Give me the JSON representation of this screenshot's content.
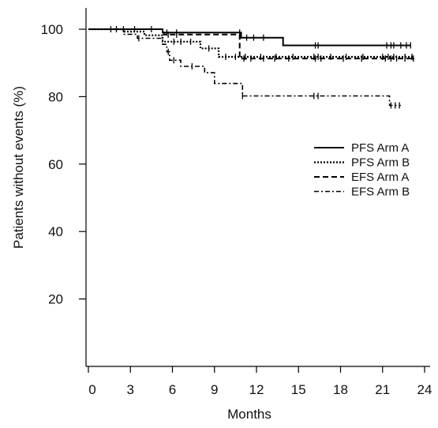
{
  "chart_data": {
    "type": "line",
    "title": "",
    "xlabel": "Months",
    "ylabel": "Patients without events (%)",
    "xlim": [
      0,
      24.5
    ],
    "ylim": [
      0,
      105
    ],
    "x_ticks": [
      0,
      3,
      6,
      9,
      12,
      15,
      18,
      21,
      24
    ],
    "x_tick_labels": [
      "0",
      "3",
      "6",
      "9",
      "12",
      "15",
      "18",
      "21",
      "24"
    ],
    "y_ticks": [
      20,
      40,
      60,
      80,
      100
    ],
    "y_tick_labels": [
      "20",
      "40",
      "60",
      "80",
      "100"
    ],
    "grid": false,
    "legend_position": "right",
    "series": [
      {
        "name": "PFS Arm A",
        "dash": "solid",
        "points": [
          [
            0,
            100
          ],
          [
            5.3,
            100
          ],
          [
            5.3,
            99
          ],
          [
            10.9,
            99
          ],
          [
            10.9,
            97.5
          ],
          [
            13.9,
            97.5
          ],
          [
            13.9,
            95.2
          ],
          [
            23,
            95.2
          ]
        ],
        "censor": [
          2.5,
          4.5,
          5.6,
          6.3,
          10.8,
          11.3,
          11.8,
          12.5,
          16.2,
          16.4,
          21.3,
          21.6,
          21.8,
          22.3,
          22.7,
          23
        ]
      },
      {
        "name": "PFS Arm B",
        "dash": "dotted",
        "points": [
          [
            0,
            100
          ],
          [
            2.5,
            100
          ],
          [
            2.5,
            99.3
          ],
          [
            4,
            99.3
          ],
          [
            4,
            98.2
          ],
          [
            5.3,
            98.2
          ],
          [
            5.3,
            96.3
          ],
          [
            8,
            96.3
          ],
          [
            8,
            94.3
          ],
          [
            9.3,
            94.3
          ],
          [
            9.3,
            91.8
          ],
          [
            23.2,
            91.8
          ],
          [
            23.2,
            91
          ]
        ],
        "censor": [
          6.1,
          6.6,
          7.3,
          8.6,
          9.8,
          10.5,
          11.2,
          12.3,
          13.4,
          14.6,
          16.1,
          16.4,
          17.3,
          18.4,
          19.6,
          21,
          21.4,
          21.8,
          22.6,
          23.1
        ]
      },
      {
        "name": "EFS Arm A",
        "dash": "dashed",
        "points": [
          [
            0,
            100
          ],
          [
            5.4,
            100
          ],
          [
            5.4,
            98.4
          ],
          [
            10.8,
            98.4
          ],
          [
            10.8,
            91.3
          ],
          [
            23.2,
            91.3
          ]
        ],
        "censor": [
          2,
          3.3,
          5.7,
          6.3,
          11.1,
          11.6,
          12.5,
          13.3,
          14.3,
          16.2,
          16.6,
          18.2,
          19.5,
          21.2,
          21.6,
          22,
          22.6,
          23.2
        ]
      },
      {
        "name": "EFS Arm B",
        "dash": "dash-dot",
        "points": [
          [
            0,
            100
          ],
          [
            2.5,
            100
          ],
          [
            2.5,
            98.5
          ],
          [
            3.5,
            98.5
          ],
          [
            3.5,
            97.3
          ],
          [
            5.3,
            97.3
          ],
          [
            5.3,
            95.5
          ],
          [
            5.6,
            95.5
          ],
          [
            5.6,
            93.3
          ],
          [
            5.8,
            93.3
          ],
          [
            5.8,
            90.8
          ],
          [
            6.6,
            90.8
          ],
          [
            6.6,
            89
          ],
          [
            8.3,
            89
          ],
          [
            8.3,
            87.1
          ],
          [
            9,
            87.1
          ],
          [
            9,
            83.9
          ],
          [
            11,
            83.9
          ],
          [
            11,
            80.2
          ],
          [
            21.5,
            80.2
          ],
          [
            21.5,
            77.4
          ],
          [
            22.3,
            77.4
          ]
        ],
        "censor": [
          1.6,
          3.6,
          5.7,
          6.1,
          7.4,
          11,
          16.1,
          16.4,
          21.6,
          21.9,
          22.2
        ]
      }
    ]
  },
  "style": {
    "line_color": "#000000",
    "axis_color": "#000000"
  }
}
